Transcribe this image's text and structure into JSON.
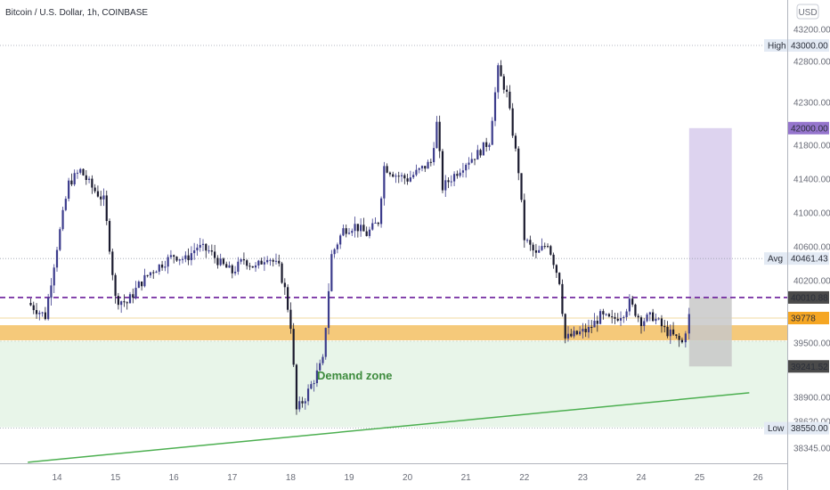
{
  "chart_data": {
    "type": "candlestick",
    "title": "Bitcoin / U.S. Dollar, 1h, COINBASE",
    "currency_button": "USD",
    "x_ticks": [
      "14",
      "15",
      "16",
      "17",
      "18",
      "19",
      "20",
      "21",
      "22",
      "23",
      "24",
      "25",
      "26"
    ],
    "y_ticks": [
      43200,
      42800,
      42300,
      41800,
      41400,
      41000,
      40600,
      40200,
      39500,
      38900,
      38620,
      38345
    ],
    "y_tick_labels": [
      "43200.00",
      "42800.00",
      "42300.00",
      "41800.00",
      "41400.00",
      "41000.00",
      "40600.00",
      "40200.00",
      "39500.00",
      "38900.00",
      "38620.00",
      "38345.00"
    ],
    "ylim": [
      38100,
      43650
    ],
    "tags": {
      "high": {
        "name": "High",
        "value": "43000.00"
      },
      "avg": {
        "name": "Avg",
        "value": "40461.43"
      },
      "low": {
        "name": "Low",
        "value": "38550.00"
      },
      "target": {
        "value": "42000.00",
        "color": "#9575cd"
      },
      "entry": {
        "value": "40010.88",
        "color": "#4a4a4a"
      },
      "current": {
        "value": "39778",
        "color": "#f5a623"
      },
      "stop": {
        "value": "39241.52",
        "color": "#4a4a4a"
      }
    },
    "levels": {
      "high": 43000,
      "avg": 40461.43,
      "low": 38550,
      "target": 42000,
      "entry": 40010.88,
      "stop": 39241.52,
      "demand_band_top": 39700,
      "demand_band_bottom": 39530,
      "demand_zone_top": 39520,
      "demand_zone_bottom": 38560
    },
    "annotations": {
      "demand_label": "Demand zone"
    },
    "colors": {
      "up_candle": "#3c3c8c",
      "down_candle": "#1a1a2e",
      "trendline": "#4caf50",
      "band": "#f5c97a",
      "zone": "#e8f5e9",
      "target_box": "#d1c4e9",
      "stop_box": "#c8c8c8",
      "entry_line": "#6a1b9a"
    },
    "series": {
      "close_path": [
        [
          "13.5",
          39950
        ],
        [
          "13.8",
          39800
        ],
        [
          "14.0",
          40600
        ],
        [
          "14.2",
          41350
        ],
        [
          "14.4",
          41500
        ],
        [
          "14.6",
          41300
        ],
        [
          "14.8",
          41150
        ],
        [
          "14.9",
          40600
        ],
        [
          "15.0",
          40000
        ],
        [
          "15.2",
          39950
        ],
        [
          "15.4",
          40150
        ],
        [
          "15.6",
          40300
        ],
        [
          "15.8",
          40400
        ],
        [
          "16.0",
          40500
        ],
        [
          "16.2",
          40450
        ],
        [
          "16.4",
          40600
        ],
        [
          "16.6",
          40550
        ],
        [
          "16.8",
          40400
        ],
        [
          "17.0",
          40300
        ],
        [
          "17.2",
          40450
        ],
        [
          "17.4",
          40350
        ],
        [
          "17.6",
          40500
        ],
        [
          "17.8",
          40350
        ],
        [
          "17.9",
          40100
        ],
        [
          "18.0",
          39700
        ],
        [
          "18.1",
          38750
        ],
        [
          "18.25",
          38900
        ],
        [
          "18.4",
          39100
        ],
        [
          "18.55",
          39300
        ],
        [
          "18.7",
          40500
        ],
        [
          "18.9",
          40800
        ],
        [
          "19.1",
          40850
        ],
        [
          "19.3",
          40750
        ],
        [
          "19.5",
          40900
        ],
        [
          "19.6",
          41550
        ],
        [
          "19.8",
          41450
        ],
        [
          "20.0",
          41400
        ],
        [
          "20.2",
          41500
        ],
        [
          "20.4",
          41600
        ],
        [
          "20.5",
          42050
        ],
        [
          "20.6",
          41300
        ],
        [
          "20.8",
          41450
        ],
        [
          "21.0",
          41600
        ],
        [
          "21.2",
          41700
        ],
        [
          "21.4",
          41850
        ],
        [
          "21.55",
          42700
        ],
        [
          "21.7",
          42400
        ],
        [
          "21.9",
          41500
        ],
        [
          "22.0",
          40700
        ],
        [
          "22.2",
          40500
        ],
        [
          "22.4",
          40650
        ],
        [
          "22.6",
          40200
        ],
        [
          "22.7",
          39550
        ],
        [
          "22.9",
          39600
        ],
        [
          "23.1",
          39650
        ],
        [
          "23.3",
          39800
        ],
        [
          "23.5",
          39750
        ],
        [
          "23.7",
          39850
        ],
        [
          "23.8",
          39950
        ],
        [
          "24.0",
          39750
        ],
        [
          "24.2",
          39800
        ],
        [
          "24.4",
          39650
        ],
        [
          "24.6",
          39550
        ],
        [
          "24.7",
          39500
        ],
        [
          "24.82",
          39800
        ]
      ]
    },
    "trendline": [
      [
        "13.5",
        38200
      ],
      [
        "25.85",
        38950
      ]
    ],
    "position_box": {
      "x_start": "24.82",
      "x_end": "25.55"
    }
  }
}
